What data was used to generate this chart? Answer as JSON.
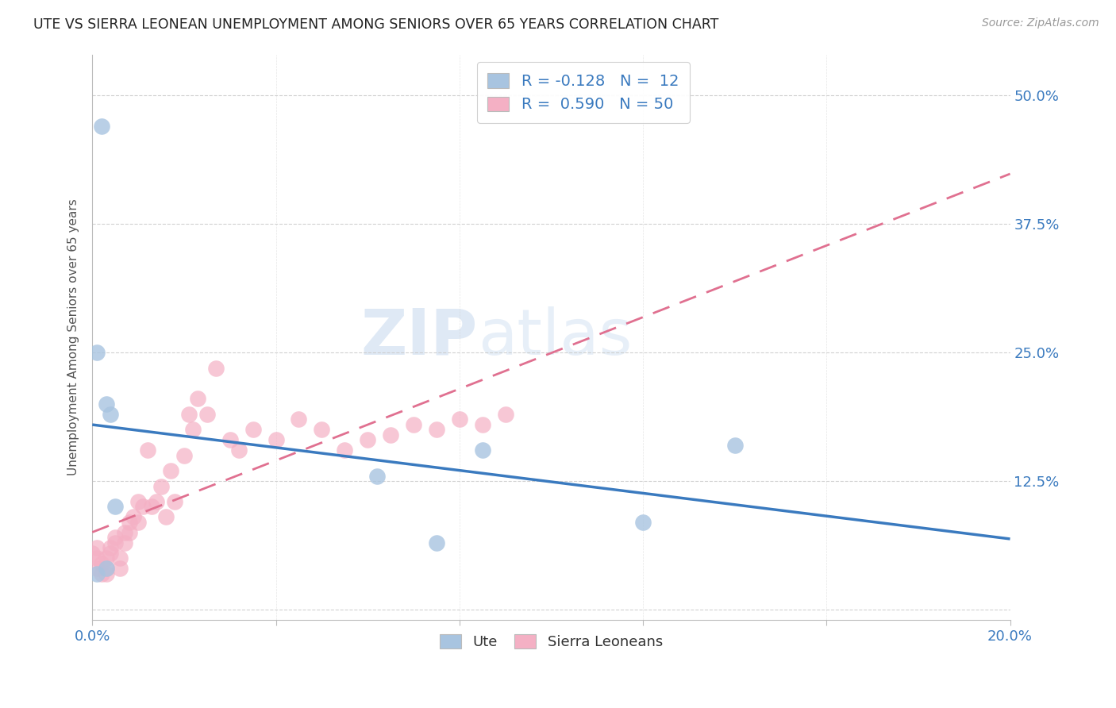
{
  "title": "UTE VS SIERRA LEONEAN UNEMPLOYMENT AMONG SENIORS OVER 65 YEARS CORRELATION CHART",
  "source": "Source: ZipAtlas.com",
  "ylabel": "Unemployment Among Seniors over 65 years",
  "xlim": [
    0.0,
    0.2
  ],
  "ylim": [
    -0.01,
    0.54
  ],
  "xticks": [
    0.0,
    0.04,
    0.08,
    0.12,
    0.16,
    0.2
  ],
  "xtick_labels": [
    "0.0%",
    "",
    "",
    "",
    "",
    "20.0%"
  ],
  "yticks": [
    0.0,
    0.125,
    0.25,
    0.375,
    0.5
  ],
  "ytick_labels": [
    "",
    "12.5%",
    "25.0%",
    "37.5%",
    "50.0%"
  ],
  "ute_color": "#a8c4e0",
  "ute_edge_color": "#7aaed0",
  "sierra_color": "#f4b0c4",
  "sierra_edge_color": "#e890a8",
  "ute_line_color": "#3a7abf",
  "sierra_line_color": "#e07090",
  "background_color": "#ffffff",
  "watermark_zip": "ZIP",
  "watermark_atlas": "atlas",
  "legend_R_ute": "-0.128",
  "legend_N_ute": "12",
  "legend_R_sierra": "0.590",
  "legend_N_sierra": "50",
  "ute_x": [
    0.002,
    0.001,
    0.003,
    0.004,
    0.003,
    0.001,
    0.062,
    0.075,
    0.005,
    0.085,
    0.14,
    0.12
  ],
  "ute_y": [
    0.47,
    0.25,
    0.2,
    0.19,
    0.04,
    0.035,
    0.13,
    0.065,
    0.1,
    0.155,
    0.16,
    0.085
  ],
  "sierra_x": [
    0.0,
    0.001,
    0.001,
    0.001,
    0.002,
    0.002,
    0.003,
    0.003,
    0.003,
    0.004,
    0.004,
    0.005,
    0.005,
    0.006,
    0.006,
    0.007,
    0.007,
    0.008,
    0.008,
    0.009,
    0.01,
    0.01,
    0.011,
    0.012,
    0.013,
    0.014,
    0.015,
    0.016,
    0.017,
    0.018,
    0.02,
    0.021,
    0.022,
    0.023,
    0.025,
    0.027,
    0.03,
    0.032,
    0.035,
    0.04,
    0.045,
    0.05,
    0.055,
    0.06,
    0.065,
    0.07,
    0.075,
    0.08,
    0.085,
    0.09
  ],
  "sierra_y": [
    0.055,
    0.06,
    0.04,
    0.05,
    0.035,
    0.045,
    0.04,
    0.035,
    0.05,
    0.06,
    0.055,
    0.065,
    0.07,
    0.05,
    0.04,
    0.075,
    0.065,
    0.085,
    0.075,
    0.09,
    0.085,
    0.105,
    0.1,
    0.155,
    0.1,
    0.105,
    0.12,
    0.09,
    0.135,
    0.105,
    0.15,
    0.19,
    0.175,
    0.205,
    0.19,
    0.235,
    0.165,
    0.155,
    0.175,
    0.165,
    0.185,
    0.175,
    0.155,
    0.165,
    0.17,
    0.18,
    0.175,
    0.185,
    0.18,
    0.19
  ]
}
